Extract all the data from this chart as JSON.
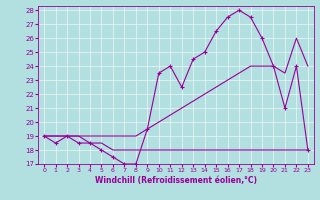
{
  "xlabel": "Windchill (Refroidissement éolien,°C)",
  "background_color": "#b2dfdf",
  "line_color": "#990099",
  "hours": [
    0,
    1,
    2,
    3,
    4,
    5,
    6,
    7,
    8,
    9,
    10,
    11,
    12,
    13,
    14,
    15,
    16,
    17,
    18,
    19,
    20,
    21,
    22,
    23
  ],
  "flat_line": [
    19,
    19,
    19,
    19,
    18.5,
    18.5,
    18,
    18,
    18,
    18,
    18,
    18,
    18,
    18,
    18,
    18,
    18,
    18,
    18,
    18,
    18,
    18,
    18,
    18
  ],
  "diag_line": [
    19,
    19,
    19,
    19,
    19,
    19,
    19,
    19,
    19,
    19.5,
    20,
    20.5,
    21,
    21.5,
    22,
    22.5,
    23,
    23.5,
    24,
    24,
    24,
    23.5,
    26,
    24
  ],
  "windchill": [
    19,
    18.5,
    19,
    18.5,
    18.5,
    18,
    17.5,
    17,
    17,
    19.5,
    23.5,
    24,
    22.5,
    24.5,
    25,
    26.5,
    27.5,
    28,
    27.5,
    26,
    24,
    21,
    24,
    18
  ],
  "ylim": [
    17,
    28
  ],
  "xlim_min": -0.5,
  "xlim_max": 23.5,
  "yticks": [
    17,
    18,
    19,
    20,
    21,
    22,
    23,
    24,
    25,
    26,
    27,
    28
  ],
  "xticks": [
    0,
    1,
    2,
    3,
    4,
    5,
    6,
    7,
    8,
    9,
    10,
    11,
    12,
    13,
    14,
    15,
    16,
    17,
    18,
    19,
    20,
    21,
    22,
    23
  ],
  "grid_color": "#ffffff",
  "tick_fontsize": 5,
  "xlabel_fontsize": 5.5,
  "linewidth": 0.8,
  "markersize": 2.5
}
